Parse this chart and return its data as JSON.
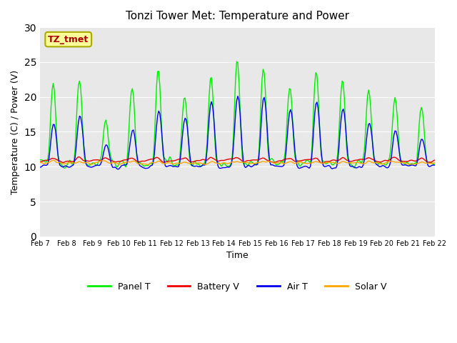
{
  "title": "Tonzi Tower Met: Temperature and Power",
  "xlabel": "Time",
  "ylabel": "Temperature (C) / Power (V)",
  "xlim_days": [
    0,
    15
  ],
  "ylim": [
    0,
    30
  ],
  "yticks": [
    0,
    5,
    10,
    15,
    20,
    25,
    30
  ],
  "xtick_labels": [
    "Feb 7",
    "Feb 8",
    "Feb 9",
    "Feb 10",
    "Feb 11",
    "Feb 12",
    "Feb 13",
    "Feb 14",
    "Feb 15",
    "Feb 16",
    "Feb 17",
    "Feb 18",
    "Feb 19",
    "Feb 20",
    "Feb 21",
    "Feb 22"
  ],
  "bg_color": "#e8e8e8",
  "fig_bg": "#ffffff",
  "panel_color": "#00ee00",
  "battery_color": "#ee0000",
  "air_color": "#0000ee",
  "solar_color": "#ffa500",
  "legend_label_panel": "Panel T",
  "legend_label_battery": "Battery V",
  "legend_label_air": "Air T",
  "legend_label_solar": "Solar V",
  "annotation_text": "TZ_tmet",
  "annotation_bg": "#ffff99",
  "annotation_fg": "#aa0000",
  "annotation_border": "#aaaa00"
}
